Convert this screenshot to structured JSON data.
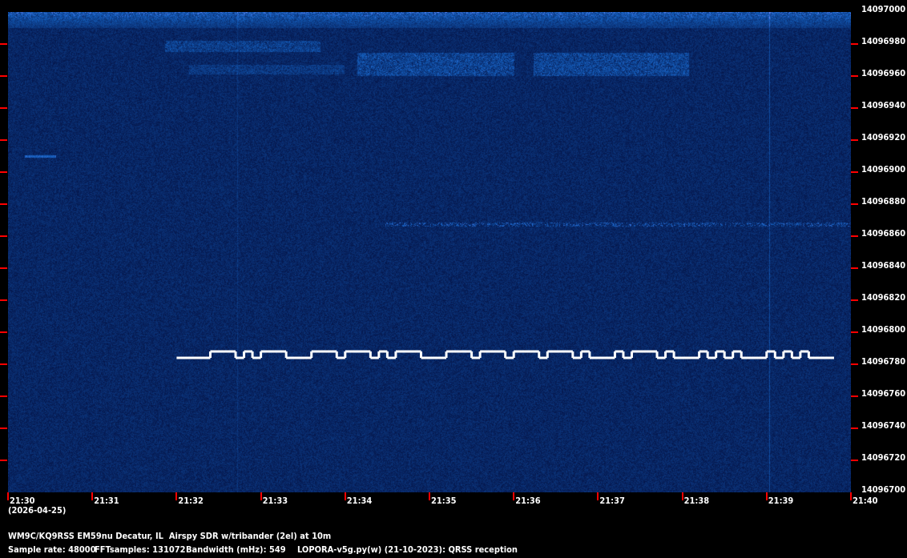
{
  "chart_data": {
    "type": "heatmap",
    "subtype": "waterfall-spectrogram",
    "colormap": [
      "#000a2a",
      "#0a2a6a",
      "#3a80c8",
      "#ffffff"
    ],
    "tick_color": "#ff0000",
    "grid": false,
    "xlim": [
      "21:30",
      "21:40"
    ],
    "ylim": [
      14096700,
      14097000
    ],
    "x_ticks": [
      "21:30",
      "21:31",
      "21:32",
      "21:33",
      "21:34",
      "21:35",
      "21:36",
      "21:37",
      "21:38",
      "21:39",
      "21:40"
    ],
    "x_date_label": "(2026-04-25)",
    "y_ticks": [
      14097000,
      14096980,
      14096960,
      14096940,
      14096920,
      14096900,
      14096880,
      14096860,
      14096840,
      14096820,
      14096800,
      14096780,
      14096760,
      14096740,
      14096720,
      14096700
    ],
    "signal": {
      "modulation": "FSK",
      "start": "21:32:00",
      "end": "21:39:48",
      "low_freq_hz": 14096784,
      "high_freq_hz": 14096788,
      "high_intervals": [
        [
          "21:32:24",
          "21:32:42"
        ],
        [
          "21:32:48",
          "21:32:54"
        ],
        [
          "21:33:00",
          "21:33:18"
        ],
        [
          "21:33:36",
          "21:33:54"
        ],
        [
          "21:34:00",
          "21:34:18"
        ],
        [
          "21:34:24",
          "21:34:30"
        ],
        [
          "21:34:36",
          "21:34:54"
        ],
        [
          "21:35:12",
          "21:35:30"
        ],
        [
          "21:35:36",
          "21:35:54"
        ],
        [
          "21:36:00",
          "21:36:18"
        ],
        [
          "21:36:24",
          "21:36:42"
        ],
        [
          "21:36:48",
          "21:36:54"
        ],
        [
          "21:37:12",
          "21:37:18"
        ],
        [
          "21:37:24",
          "21:37:42"
        ],
        [
          "21:37:48",
          "21:37:54"
        ],
        [
          "21:38:12",
          "21:38:18"
        ],
        [
          "21:38:24",
          "21:38:30"
        ],
        [
          "21:38:36",
          "21:38:42"
        ],
        [
          "21:39:00",
          "21:39:06"
        ],
        [
          "21:39:12",
          "21:39:18"
        ],
        [
          "21:39:24",
          "21:39:30"
        ]
      ]
    }
  },
  "footer": {
    "station": "WM9C/KQ9RSS EM59nu Decatur, IL  Airspy SDR w/tribander (2el) at 10m",
    "sample_rate": "Sample rate: 48000",
    "fft_samples": "FFTsamples: 131072",
    "bandwidth": "Bandwidth (mHz): 549",
    "software": "LOPORA-v5g.py(w) (21-10-2023): QRSS reception"
  }
}
